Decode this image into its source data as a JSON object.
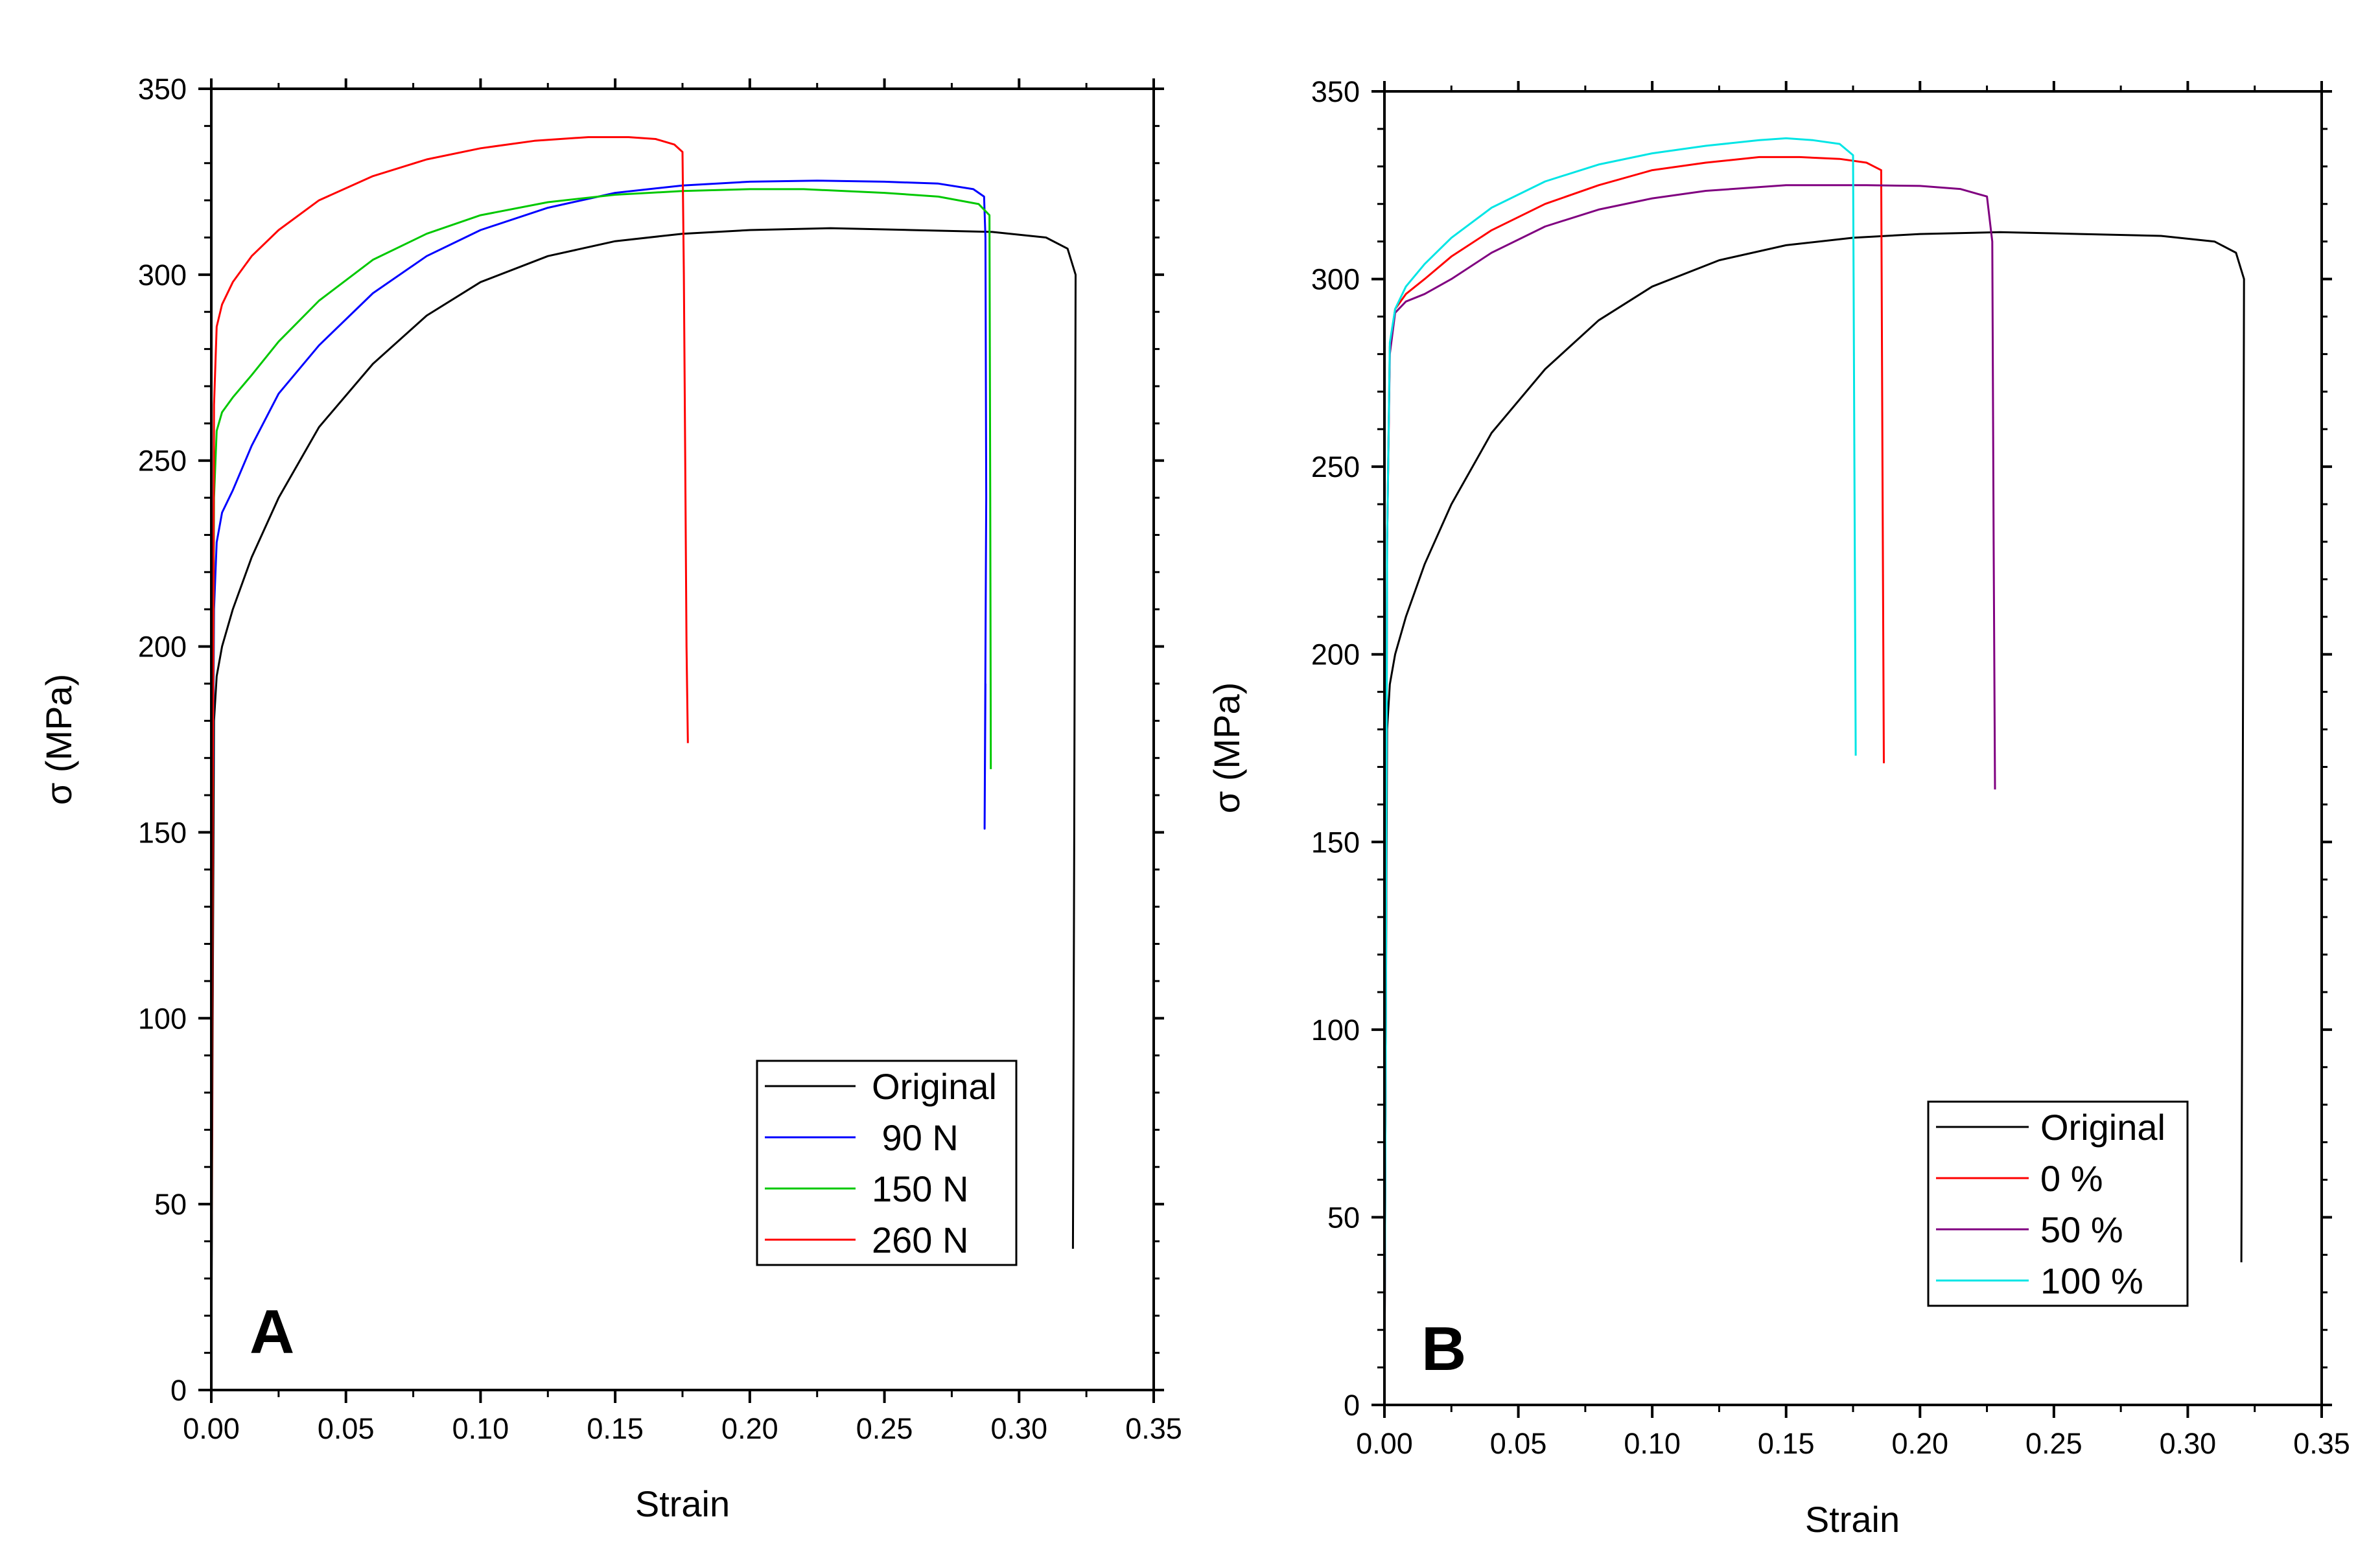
{
  "chart_data": [
    {
      "type": "line",
      "panel_label": "A",
      "xlabel": "Strain",
      "ylabel": "σ (MPa)",
      "xlim": [
        0,
        0.35
      ],
      "ylim": [
        0,
        350
      ],
      "xticks": [
        "0.00",
        "0.05",
        "0.10",
        "0.15",
        "0.20",
        "0.25",
        "0.30",
        "0.35"
      ],
      "yticks": [
        "0",
        "50",
        "100",
        "150",
        "200",
        "250",
        "300",
        "350"
      ],
      "legend_position": "bottom-right",
      "series": [
        {
          "name": "Original",
          "color": "#000000",
          "x": [
            0,
            0.0005,
            0.001,
            0.002,
            0.004,
            0.008,
            0.015,
            0.025,
            0.04,
            0.06,
            0.08,
            0.1,
            0.125,
            0.15,
            0.175,
            0.2,
            0.23,
            0.26,
            0.29,
            0.31,
            0.318,
            0.321,
            0.3205,
            0.32
          ],
          "y": [
            0,
            100,
            180,
            192,
            200,
            210,
            224,
            240,
            259,
            276,
            289,
            298,
            305,
            309,
            311,
            312,
            312.5,
            312,
            311.5,
            310,
            307,
            300,
            150,
            38
          ]
        },
        {
          "name": " 90 N",
          "color": "#0000ff",
          "x": [
            0,
            0.0005,
            0.001,
            0.002,
            0.004,
            0.008,
            0.015,
            0.025,
            0.04,
            0.06,
            0.08,
            0.1,
            0.125,
            0.15,
            0.175,
            0.2,
            0.225,
            0.25,
            0.27,
            0.283,
            0.287,
            0.2875,
            0.2878,
            0.2872,
            0.2875
          ],
          "y": [
            0,
            150,
            210,
            228,
            236,
            242,
            254,
            268,
            281,
            295,
            305,
            312,
            318,
            322,
            324,
            325,
            325.3,
            325,
            324.5,
            323,
            321,
            310,
            240,
            151,
            190
          ]
        },
        {
          "name": "150 N",
          "color": "#00c800",
          "x": [
            0,
            0.0005,
            0.001,
            0.002,
            0.004,
            0.008,
            0.015,
            0.025,
            0.04,
            0.06,
            0.08,
            0.1,
            0.125,
            0.15,
            0.175,
            0.2,
            0.22,
            0.25,
            0.27,
            0.285,
            0.289,
            0.2893,
            0.2895
          ],
          "y": [
            0,
            150,
            240,
            258,
            263,
            267,
            273,
            282,
            293,
            304,
            311,
            316,
            319.5,
            321.5,
            322.5,
            323,
            323,
            322,
            321,
            319,
            316,
            240,
            167
          ]
        },
        {
          "name": "260 N",
          "color": "#ff0000",
          "x": [
            0,
            0.0005,
            0.001,
            0.002,
            0.004,
            0.008,
            0.015,
            0.025,
            0.04,
            0.06,
            0.08,
            0.1,
            0.12,
            0.14,
            0.155,
            0.165,
            0.172,
            0.175,
            0.1755,
            0.176,
            0.1765,
            0.177
          ],
          "y": [
            0,
            150,
            265,
            286,
            292,
            298,
            305,
            312,
            320,
            326.5,
            331,
            334,
            336,
            337,
            337,
            336.5,
            335,
            333,
            300,
            250,
            200,
            174
          ]
        }
      ]
    },
    {
      "type": "line",
      "panel_label": "B",
      "xlabel": "Strain",
      "ylabel": "σ (MPa)",
      "xlim": [
        0,
        0.35
      ],
      "ylim": [
        0,
        350
      ],
      "xticks": [
        "0.00",
        "0.05",
        "0.10",
        "0.15",
        "0.20",
        "0.25",
        "0.30",
        "0.35"
      ],
      "yticks": [
        "0",
        "50",
        "100",
        "150",
        "200",
        "250",
        "300",
        "350"
      ],
      "legend_position": "bottom-right",
      "series": [
        {
          "name": "Original",
          "color": "#000000",
          "x": [
            0,
            0.0005,
            0.001,
            0.002,
            0.004,
            0.008,
            0.015,
            0.025,
            0.04,
            0.06,
            0.08,
            0.1,
            0.125,
            0.15,
            0.175,
            0.2,
            0.23,
            0.26,
            0.29,
            0.31,
            0.318,
            0.321,
            0.3205,
            0.32
          ],
          "y": [
            0,
            100,
            180,
            192,
            200,
            210,
            224,
            240,
            259,
            276,
            289,
            298,
            305,
            309,
            311,
            312,
            312.5,
            312,
            311.5,
            310,
            307,
            300,
            150,
            38
          ]
        },
        {
          "name": "0 %",
          "color": "#ff0000",
          "x": [
            0,
            0.0005,
            0.001,
            0.002,
            0.004,
            0.008,
            0.015,
            0.025,
            0.04,
            0.06,
            0.08,
            0.1,
            0.12,
            0.14,
            0.155,
            0.17,
            0.18,
            0.1855,
            0.186,
            0.1865
          ],
          "y": [
            0,
            100,
            230,
            282,
            292,
            296,
            300,
            306,
            313,
            320,
            325,
            329,
            331,
            332.5,
            332.5,
            332,
            331,
            329,
            250,
            171
          ]
        },
        {
          "name": "50 %",
          "color": "#800080",
          "x": [
            0,
            0.0005,
            0.001,
            0.002,
            0.004,
            0.008,
            0.015,
            0.025,
            0.04,
            0.06,
            0.08,
            0.1,
            0.12,
            0.15,
            0.18,
            0.2,
            0.215,
            0.225,
            0.227,
            0.2275,
            0.228
          ],
          "y": [
            0,
            100,
            230,
            280,
            291,
            294,
            296,
            300,
            307,
            314,
            318.5,
            321.5,
            323.5,
            325,
            325,
            324.8,
            324,
            322,
            310,
            230,
            164
          ]
        },
        {
          "name": "100 %",
          "color": "#00e5e5",
          "x": [
            0,
            0.0005,
            0.001,
            0.002,
            0.004,
            0.008,
            0.015,
            0.025,
            0.04,
            0.06,
            0.08,
            0.1,
            0.12,
            0.14,
            0.15,
            0.16,
            0.17,
            0.175,
            0.1755,
            0.176
          ],
          "y": [
            0,
            100,
            230,
            283,
            292,
            298,
            304,
            311,
            319,
            326,
            330.5,
            333.5,
            335.5,
            337,
            337.5,
            337,
            336,
            333,
            250,
            173
          ]
        }
      ]
    }
  ]
}
